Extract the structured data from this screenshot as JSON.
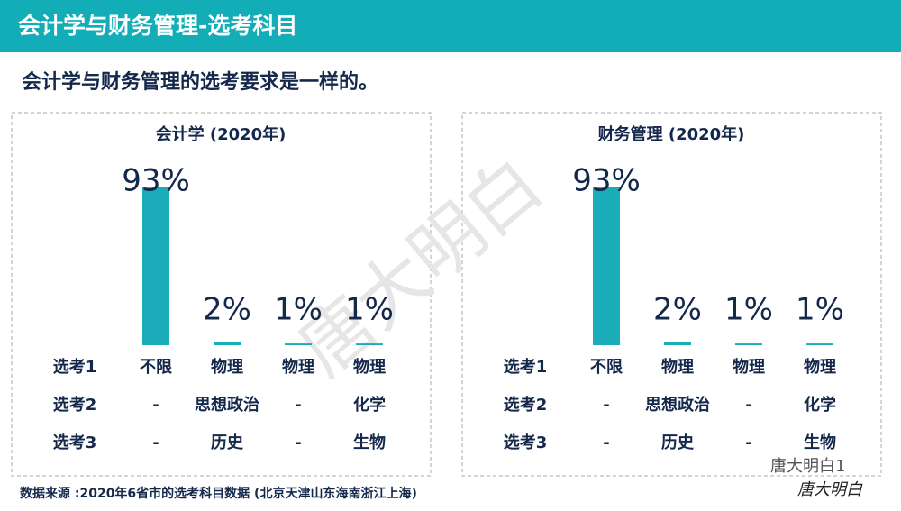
{
  "header": "会计学与财务管理-选考科目",
  "subtitle": "会计学与财务管理的选考要求是一样的。",
  "source": "数据来源 :2020年6省市的选考科目数据 (北京天津山东海南浙江上海)",
  "watermark": "唐大明白",
  "badge": {
    "account": "唐大明白1",
    "signature": "唐大明白"
  },
  "chart_data": [
    {
      "type": "bar",
      "title": "会计学 (2020年)",
      "color": "#1aacb8",
      "categories": [
        "不限",
        "物理",
        "物理",
        "物理"
      ],
      "values": [
        93,
        2,
        1,
        1
      ],
      "value_labels": [
        "93%",
        "2%",
        "1%",
        "1%"
      ],
      "row_labels": [
        "选考1",
        "选考2",
        "选考3"
      ],
      "rows": [
        [
          "-",
          "思想政治",
          "-",
          "化学"
        ],
        [
          "-",
          "历史",
          "-",
          "生物"
        ]
      ]
    },
    {
      "type": "bar",
      "title": "财务管理 (2020年)",
      "color": "#1aacb8",
      "categories": [
        "不限",
        "物理",
        "物理",
        "物理"
      ],
      "values": [
        93,
        2,
        1,
        1
      ],
      "value_labels": [
        "93%",
        "2%",
        "1%",
        "1%"
      ],
      "row_labels": [
        "选考1",
        "选考2",
        "选考3"
      ],
      "rows": [
        [
          "-",
          "思想政治",
          "-",
          "化学"
        ],
        [
          "-",
          "历史",
          "-",
          "生物"
        ]
      ]
    }
  ]
}
